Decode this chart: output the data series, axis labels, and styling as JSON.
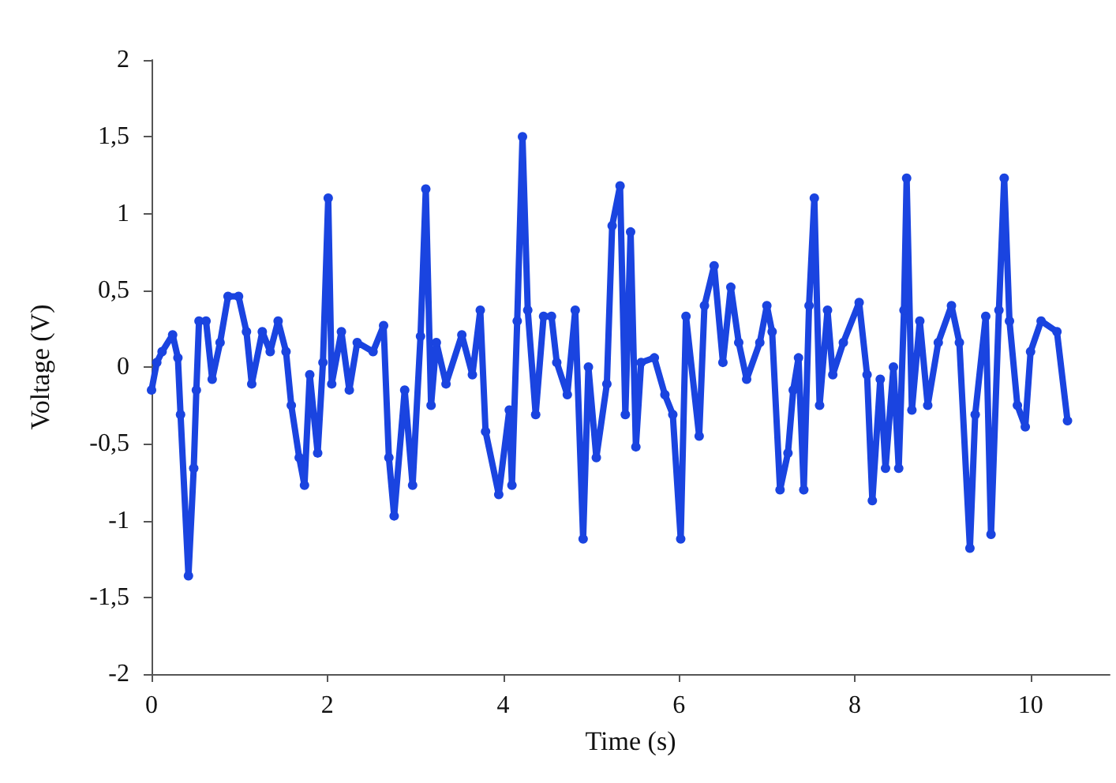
{
  "chart_data": {
    "type": "line",
    "xlabel": "Time (s)",
    "ylabel": "Voltage (V)",
    "marker": "circle",
    "grid": false,
    "xlim": [
      0,
      10.9
    ],
    "xticks": [
      0,
      2,
      4,
      6,
      8,
      10
    ],
    "ylim": [
      -2,
      2
    ],
    "yticks": [
      {
        "value": -2,
        "label": "-2"
      },
      {
        "value": -1.5,
        "label": "-1,5"
      },
      {
        "value": -1,
        "label": "-1"
      },
      {
        "value": -0.5,
        "label": "-0,5"
      },
      {
        "value": 0,
        "label": "0"
      },
      {
        "value": 0.5,
        "label": "0,5"
      },
      {
        "value": 1,
        "label": "1"
      },
      {
        "value": 1.5,
        "label": "1,5"
      },
      {
        "value": 2,
        "label": "2"
      }
    ],
    "series": [
      {
        "color": "#1a44e0",
        "x": [
          0,
          0.06,
          0.12,
          0.24,
          0.3,
          0.33,
          0.42,
          0.48,
          0.51,
          0.54,
          0.62,
          0.69,
          0.78,
          0.87,
          0.99,
          1.08,
          1.14,
          1.26,
          1.35,
          1.44,
          1.53,
          1.59,
          1.68,
          1.74,
          1.8,
          1.89,
          1.95,
          2.01,
          2.05,
          2.16,
          2.25,
          2.34,
          2.52,
          2.64,
          2.7,
          2.76,
          2.88,
          2.97,
          3.06,
          3.12,
          3.18,
          3.24,
          3.35,
          3.53,
          3.65,
          3.74,
          3.8,
          3.95,
          4.07,
          4.1,
          4.16,
          4.22,
          4.28,
          4.37,
          4.46,
          4.55,
          4.61,
          4.73,
          4.82,
          4.91,
          4.97,
          5.06,
          5.18,
          5.24,
          5.33,
          5.39,
          5.45,
          5.51,
          5.57,
          5.72,
          5.84,
          5.93,
          6.02,
          6.08,
          6.23,
          6.29,
          6.4,
          6.5,
          6.59,
          6.68,
          6.77,
          6.92,
          7.0,
          7.06,
          7.15,
          7.24,
          7.3,
          7.36,
          7.42,
          7.48,
          7.54,
          7.6,
          7.69,
          7.75,
          7.87,
          8.05,
          8.14,
          8.2,
          8.29,
          8.35,
          8.44,
          8.5,
          8.56,
          8.59,
          8.65,
          8.74,
          8.83,
          8.95,
          9.1,
          9.19,
          9.31,
          9.37,
          9.49,
          9.55,
          9.64,
          9.7,
          9.76,
          9.85,
          9.94,
          10.0,
          10.12,
          10.3,
          10.42
        ],
        "values": [
          -0.15,
          0.03,
          0.1,
          0.21,
          0.06,
          -0.31,
          -1.36,
          -0.66,
          -0.15,
          0.3,
          0.3,
          -0.08,
          0.16,
          0.46,
          0.46,
          0.23,
          -0.11,
          0.23,
          0.1,
          0.3,
          0.1,
          -0.25,
          -0.59,
          -0.77,
          -0.05,
          -0.56,
          0.03,
          1.1,
          -0.11,
          0.23,
          -0.15,
          0.16,
          0.1,
          0.27,
          -0.59,
          -0.97,
          -0.15,
          -0.77,
          0.2,
          1.16,
          -0.25,
          0.16,
          -0.11,
          0.21,
          -0.05,
          0.37,
          -0.42,
          -0.83,
          -0.28,
          -0.77,
          0.3,
          1.5,
          0.37,
          -0.31,
          0.33,
          0.33,
          0.03,
          -0.18,
          0.37,
          -1.12,
          0,
          -0.59,
          -0.11,
          0.92,
          1.18,
          -0.31,
          0.88,
          -0.52,
          0.03,
          0.06,
          -0.18,
          -0.31,
          -1.12,
          0.33,
          -0.45,
          0.4,
          0.66,
          0.03,
          0.52,
          0.16,
          -0.08,
          0.16,
          0.4,
          0.23,
          -0.8,
          -0.56,
          -0.15,
          0.06,
          -0.8,
          0.4,
          1.1,
          -0.25,
          0.37,
          -0.05,
          0.16,
          0.42,
          -0.05,
          -0.87,
          -0.08,
          -0.66,
          0,
          -0.66,
          0.37,
          1.23,
          -0.28,
          0.3,
          -0.25,
          0.16,
          0.4,
          0.16,
          -1.18,
          -0.31,
          0.33,
          -1.09,
          0.37,
          1.23,
          0.3,
          -0.25,
          -0.39,
          0.1,
          0.3,
          0.23,
          -0.35
        ]
      }
    ]
  }
}
